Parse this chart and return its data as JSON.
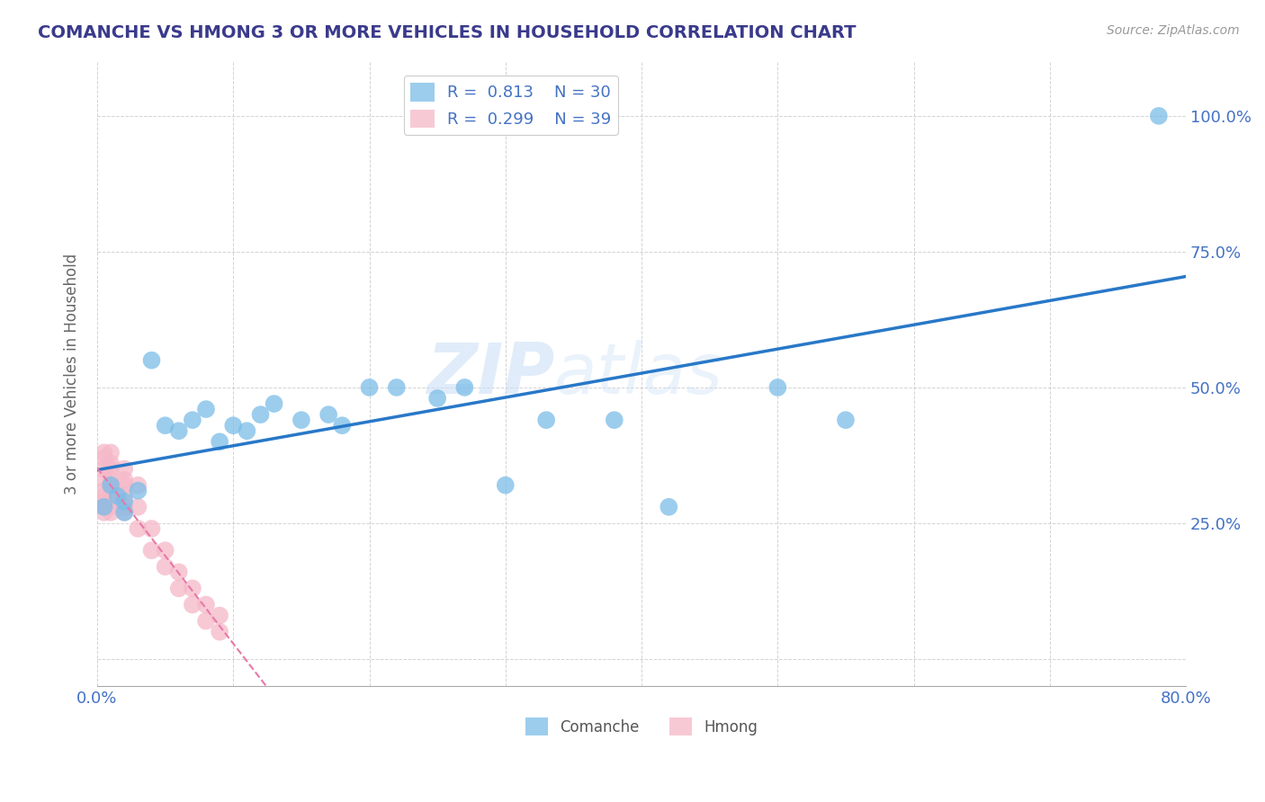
{
  "title": "COMANCHE VS HMONG 3 OR MORE VEHICLES IN HOUSEHOLD CORRELATION CHART",
  "source": "Source: ZipAtlas.com",
  "ylabel": "3 or more Vehicles in Household",
  "xlim": [
    0.0,
    0.8
  ],
  "ylim": [
    -0.05,
    1.1
  ],
  "legend1_R": "0.813",
  "legend1_N": "30",
  "legend2_R": "0.299",
  "legend2_N": "39",
  "comanche_color": "#7bbde8",
  "hmong_color": "#f5b8c8",
  "trendline_comanche_color": "#2878c8",
  "trendline_hmong_color": "#e878a8",
  "watermark_zip": "ZIP",
  "watermark_atlas": "atlas",
  "background_color": "#ffffff",
  "grid_color": "#c8c8c8",
  "comanche_x": [
    0.005,
    0.01,
    0.015,
    0.02,
    0.02,
    0.03,
    0.04,
    0.05,
    0.06,
    0.07,
    0.08,
    0.09,
    0.1,
    0.11,
    0.12,
    0.13,
    0.15,
    0.17,
    0.18,
    0.2,
    0.22,
    0.25,
    0.27,
    0.3,
    0.33,
    0.38,
    0.42,
    0.5,
    0.55,
    0.78
  ],
  "comanche_y": [
    0.28,
    0.32,
    0.3,
    0.27,
    0.29,
    0.31,
    0.55,
    0.43,
    0.42,
    0.44,
    0.46,
    0.4,
    0.43,
    0.42,
    0.45,
    0.47,
    0.44,
    0.45,
    0.43,
    0.5,
    0.5,
    0.48,
    0.5,
    0.32,
    0.44,
    0.44,
    0.28,
    0.5,
    0.44,
    1.0
  ],
  "hmong_x": [
    0.005,
    0.005,
    0.005,
    0.005,
    0.005,
    0.005,
    0.005,
    0.005,
    0.005,
    0.01,
    0.01,
    0.01,
    0.01,
    0.01,
    0.01,
    0.01,
    0.01,
    0.01,
    0.02,
    0.02,
    0.02,
    0.02,
    0.02,
    0.02,
    0.03,
    0.03,
    0.03,
    0.04,
    0.04,
    0.05,
    0.05,
    0.06,
    0.06,
    0.07,
    0.07,
    0.08,
    0.08,
    0.09,
    0.09
  ],
  "hmong_y": [
    0.27,
    0.28,
    0.29,
    0.3,
    0.31,
    0.33,
    0.35,
    0.37,
    0.38,
    0.27,
    0.28,
    0.29,
    0.3,
    0.32,
    0.33,
    0.35,
    0.36,
    0.38,
    0.27,
    0.28,
    0.3,
    0.32,
    0.33,
    0.35,
    0.24,
    0.28,
    0.32,
    0.2,
    0.24,
    0.17,
    0.2,
    0.13,
    0.16,
    0.1,
    0.13,
    0.07,
    0.1,
    0.05,
    0.08
  ]
}
